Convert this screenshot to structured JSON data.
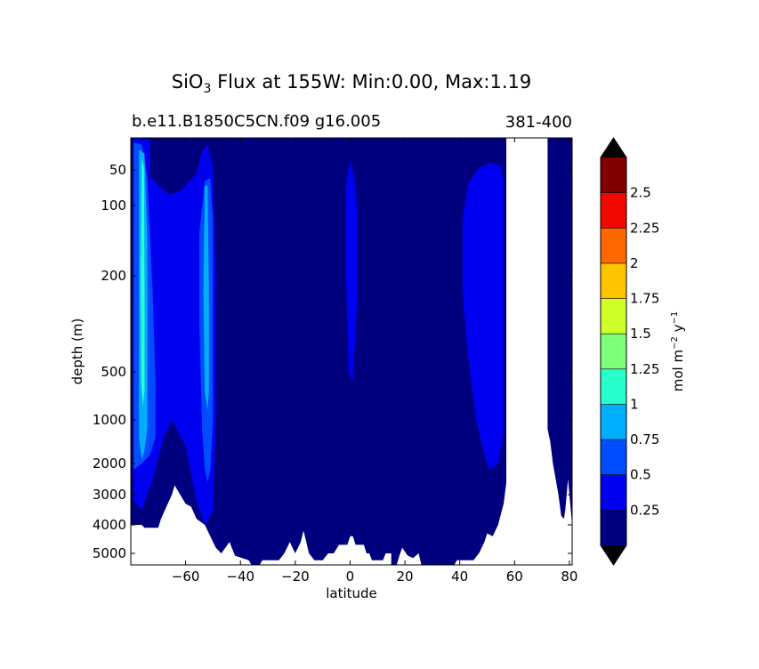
{
  "chart_data": {
    "type": "heatmap",
    "title_prefix": "SiO",
    "title_subscript": "3",
    "title_suffix": " Flux at 155W: Min:0.00, Max:1.19",
    "subtitle_left": "b.e11.B1850C5CN.f09 g16.005",
    "subtitle_right": "381-400",
    "xlabel": "latitude",
    "ylabel": "depth (m)",
    "xlim": [
      -80,
      81
    ],
    "ylim": [
      5500,
      15
    ],
    "yscale": "symlog-depth",
    "x_ticks": [
      {
        "v": -60,
        "label": "−60"
      },
      {
        "v": -40,
        "label": "−40"
      },
      {
        "v": -20,
        "label": "−20"
      },
      {
        "v": 0,
        "label": "0"
      },
      {
        "v": 20,
        "label": "20"
      },
      {
        "v": 40,
        "label": "40"
      },
      {
        "v": 60,
        "label": "60"
      },
      {
        "v": 80,
        "label": "80"
      }
    ],
    "y_ticks": [
      {
        "v": 50,
        "label": "50"
      },
      {
        "v": 100,
        "label": "100"
      },
      {
        "v": 200,
        "label": "200"
      },
      {
        "v": 500,
        "label": "500"
      },
      {
        "v": 1000,
        "label": "1000"
      },
      {
        "v": 2000,
        "label": "2000"
      },
      {
        "v": 3000,
        "label": "3000"
      },
      {
        "v": 4000,
        "label": "4000"
      },
      {
        "v": 5000,
        "label": "5000"
      }
    ],
    "colorbar": {
      "label_prefix": "mol m",
      "label_sup1": "−2",
      "label_mid": " y",
      "label_sup2": "−1",
      "levels": [
        0,
        0.25,
        0.5,
        0.75,
        1,
        1.25,
        1.5,
        1.75,
        2,
        2.25,
        2.5,
        2.75
      ],
      "tick_labels": [
        "0.25",
        "0.5",
        "0.75",
        "1",
        "1.25",
        "1.5",
        "1.75",
        "2",
        "2.25",
        "2.5"
      ],
      "colors": [
        "#00007f",
        "#0000f1",
        "#004cff",
        "#00b0ff",
        "#29ffce",
        "#7dff7a",
        "#ceff29",
        "#ffc400",
        "#ff6800",
        "#f10800",
        "#7f0000"
      ],
      "extend_low_color": "#000000",
      "extend_high_color": "#000000"
    },
    "regions": [
      {
        "level": 1,
        "points": [
          [
            -79,
            15
          ],
          [
            -73,
            17
          ],
          [
            -73,
            60
          ],
          [
            -69,
            75
          ],
          [
            -66,
            85
          ],
          [
            -62,
            80
          ],
          [
            -56,
            55
          ],
          [
            -54,
            30
          ],
          [
            -52,
            22
          ],
          [
            -50,
            50
          ],
          [
            -49,
            200
          ],
          [
            -49,
            1000
          ],
          [
            -50,
            3500
          ],
          [
            -53,
            4000
          ],
          [
            -56,
            3200
          ],
          [
            -60,
            1600
          ],
          [
            -65,
            1000
          ],
          [
            -68,
            1400
          ],
          [
            -72,
            2500
          ],
          [
            -76,
            3500
          ],
          [
            -79,
            3200
          ]
        ]
      },
      {
        "level": 1,
        "points": [
          [
            0,
            40
          ],
          [
            1.5,
            60
          ],
          [
            2.5,
            100
          ],
          [
            2.5,
            300
          ],
          [
            1,
            600
          ],
          [
            -0.5,
            500
          ],
          [
            -1.5,
            200
          ],
          [
            -1.5,
            70
          ]
        ]
      },
      {
        "level": 1,
        "points": [
          [
            41,
            120
          ],
          [
            43,
            70
          ],
          [
            47,
            48
          ],
          [
            51,
            42
          ],
          [
            55,
            46
          ],
          [
            56,
            70
          ],
          [
            56,
            1300
          ],
          [
            54,
            2000
          ],
          [
            51,
            2200
          ],
          [
            49,
            1800
          ],
          [
            46,
            1000
          ],
          [
            43,
            450
          ],
          [
            41,
            250
          ]
        ]
      },
      {
        "level": 2,
        "points": [
          [
            -79,
            20
          ],
          [
            -76,
            22
          ],
          [
            -74,
            60
          ],
          [
            -72,
            250
          ],
          [
            -71,
            600
          ],
          [
            -71,
            1400
          ],
          [
            -73,
            1800
          ],
          [
            -76,
            2000
          ],
          [
            -79,
            2200
          ]
        ]
      },
      {
        "level": 2,
        "points": [
          [
            -53,
            65
          ],
          [
            -51,
            62
          ],
          [
            -50,
            120
          ],
          [
            -50,
            400
          ],
          [
            -50,
            1000
          ],
          [
            -51,
            2200
          ],
          [
            -52,
            2600
          ],
          [
            -53,
            2200
          ],
          [
            -54,
            1200
          ],
          [
            -55,
            350
          ],
          [
            -55,
            140
          ]
        ]
      },
      {
        "level": 3,
        "points": [
          [
            -77,
            28
          ],
          [
            -75,
            32
          ],
          [
            -74,
            150
          ],
          [
            -74,
            600
          ],
          [
            -74,
            1200
          ],
          [
            -75,
            1700
          ],
          [
            -76,
            1900
          ],
          [
            -77,
            1400
          ],
          [
            -77,
            400
          ]
        ]
      },
      {
        "level": 3,
        "points": [
          [
            -53,
            72
          ],
          [
            -52,
            72
          ],
          [
            -51.5,
            250
          ],
          [
            -51.5,
            700
          ],
          [
            -52,
            900
          ],
          [
            -53,
            700
          ],
          [
            -53.5,
            250
          ]
        ]
      },
      {
        "level": 4,
        "points": [
          [
            -76,
            38
          ],
          [
            -75.2,
            48
          ],
          [
            -75,
            250
          ],
          [
            -75,
            700
          ],
          [
            -75.6,
            850
          ],
          [
            -76.2,
            600
          ],
          [
            -76.4,
            200
          ]
        ]
      }
    ],
    "land_segments": [
      [
        57,
        72
      ]
    ],
    "bottom_profile": [
      [
        -80,
        4000
      ],
      [
        -76,
        4000
      ],
      [
        -75,
        4100
      ],
      [
        -70,
        4100
      ],
      [
        -69,
        3800
      ],
      [
        -67,
        3400
      ],
      [
        -65,
        3000
      ],
      [
        -64,
        2700
      ],
      [
        -62,
        3000
      ],
      [
        -60,
        3300
      ],
      [
        -58,
        3400
      ],
      [
        -56,
        3800
      ],
      [
        -53,
        4000
      ],
      [
        -51,
        4400
      ],
      [
        -49,
        4800
      ],
      [
        -47,
        5000
      ],
      [
        -44,
        4600
      ],
      [
        -42,
        5100
      ],
      [
        -37,
        5300
      ],
      [
        -36,
        5500
      ],
      [
        -33,
        5500
      ],
      [
        -32,
        5300
      ],
      [
        -26,
        5300
      ],
      [
        -24,
        5000
      ],
      [
        -22,
        4600
      ],
      [
        -20,
        5000
      ],
      [
        -18,
        4600
      ],
      [
        -17,
        4200
      ],
      [
        -16,
        4600
      ],
      [
        -15,
        5000
      ],
      [
        -13,
        5300
      ],
      [
        -10,
        5300
      ],
      [
        -8,
        5000
      ],
      [
        -6,
        5000
      ],
      [
        -4,
        4700
      ],
      [
        -1,
        4700
      ],
      [
        0,
        4400
      ],
      [
        1,
        4400
      ],
      [
        2,
        4700
      ],
      [
        5,
        4700
      ],
      [
        6,
        5000
      ],
      [
        7,
        5000
      ],
      [
        8,
        5300
      ],
      [
        12,
        5300
      ],
      [
        13,
        5000
      ],
      [
        15,
        5000
      ],
      [
        15,
        5500
      ],
      [
        17,
        5500
      ],
      [
        18,
        5100
      ],
      [
        19,
        4800
      ],
      [
        21,
        5100
      ],
      [
        23,
        5200
      ],
      [
        25,
        5000
      ],
      [
        26,
        5500
      ],
      [
        38,
        5500
      ],
      [
        39,
        5300
      ],
      [
        45,
        5300
      ],
      [
        47,
        5000
      ],
      [
        49,
        4600
      ],
      [
        50,
        4300
      ],
      [
        52,
        4400
      ],
      [
        54,
        4000
      ],
      [
        56,
        3300
      ],
      [
        57,
        2600
      ],
      [
        57,
        0
      ],
      [
        72,
        0
      ],
      [
        72,
        1200
      ],
      [
        73,
        1500
      ],
      [
        74,
        2000
      ],
      [
        75,
        2500
      ],
      [
        76,
        3000
      ],
      [
        77,
        3700
      ],
      [
        78,
        3800
      ],
      [
        78.5,
        3500
      ],
      [
        79,
        3000
      ],
      [
        79.5,
        2500
      ],
      [
        80,
        3000
      ],
      [
        80.5,
        3500
      ],
      [
        81,
        4000
      ]
    ]
  }
}
